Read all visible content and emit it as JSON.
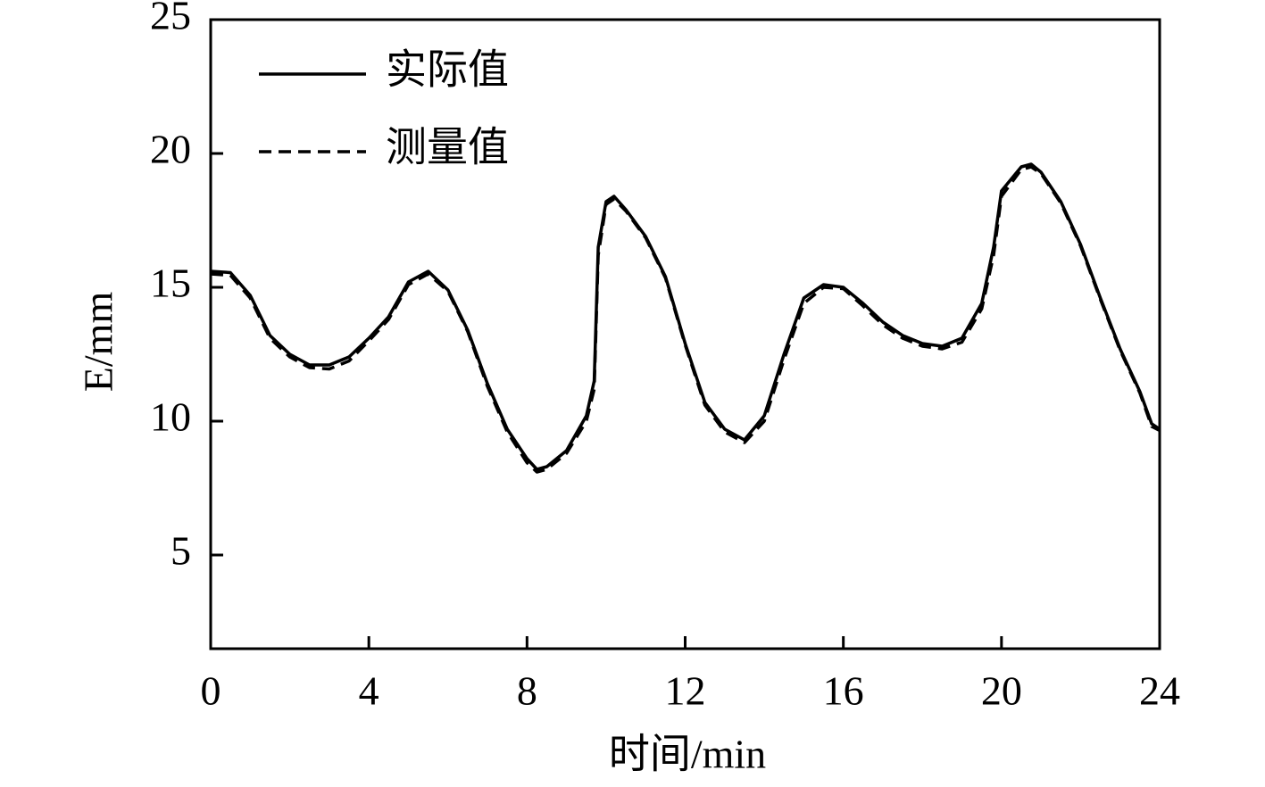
{
  "chart_data": {
    "type": "line",
    "x_label": "时间/min",
    "y_label": "E/mm",
    "x": [
      0,
      0.5,
      1,
      1.5,
      2,
      2.5,
      3,
      3.5,
      4,
      4.5,
      5,
      5.5,
      6,
      6.5,
      7,
      7.5,
      8,
      8.25,
      8.5,
      9,
      9.5,
      9.7,
      9.8,
      10,
      10.2,
      10.5,
      11,
      11.5,
      12,
      12.5,
      13,
      13.5,
      14,
      14.5,
      15,
      15.5,
      16,
      16.5,
      17,
      17.5,
      18,
      18.5,
      19,
      19.5,
      19.8,
      20,
      20.5,
      20.75,
      21,
      21.5,
      22,
      22.5,
      23,
      23.5,
      23.8,
      24
    ],
    "series": [
      {
        "name": "实际值",
        "color": "#000000",
        "dash": false,
        "values": [
          15.6,
          15.55,
          14.7,
          13.2,
          12.5,
          12.1,
          12.1,
          12.4,
          13.1,
          13.9,
          15.2,
          15.6,
          14.9,
          13.4,
          11.4,
          9.7,
          8.6,
          8.2,
          8.3,
          8.9,
          10.2,
          11.5,
          16.5,
          18.2,
          18.4,
          17.9,
          16.9,
          15.4,
          12.9,
          10.7,
          9.7,
          9.3,
          10.2,
          12.5,
          14.6,
          15.1,
          15.0,
          14.4,
          13.7,
          13.2,
          12.9,
          12.8,
          13.1,
          14.4,
          16.5,
          18.6,
          19.5,
          19.6,
          19.3,
          18.2,
          16.6,
          14.6,
          12.7,
          11.1,
          9.9,
          9.7
        ]
      },
      {
        "name": "测量值",
        "color": "#000000",
        "dash": true,
        "values": [
          15.5,
          15.45,
          14.6,
          13.1,
          12.4,
          12.0,
          11.95,
          12.25,
          13.0,
          13.8,
          15.1,
          15.5,
          14.85,
          13.35,
          11.3,
          9.6,
          8.45,
          8.1,
          8.2,
          8.8,
          10.0,
          11.2,
          16.2,
          18.1,
          18.3,
          17.85,
          16.85,
          15.35,
          12.85,
          10.6,
          9.6,
          9.2,
          10.0,
          12.3,
          14.4,
          15.0,
          14.95,
          14.3,
          13.6,
          13.1,
          12.8,
          12.7,
          12.95,
          14.2,
          16.2,
          18.4,
          19.4,
          19.5,
          19.25,
          18.15,
          16.55,
          14.55,
          12.65,
          11.05,
          9.8,
          9.65
        ]
      }
    ],
    "xlim": [
      0,
      24
    ],
    "xticks": [
      0,
      4,
      8,
      12,
      16,
      20,
      24
    ],
    "ylim": [
      1.5,
      25
    ],
    "yticks": [
      5,
      10,
      15,
      20,
      25
    ],
    "legend": "upper left"
  }
}
